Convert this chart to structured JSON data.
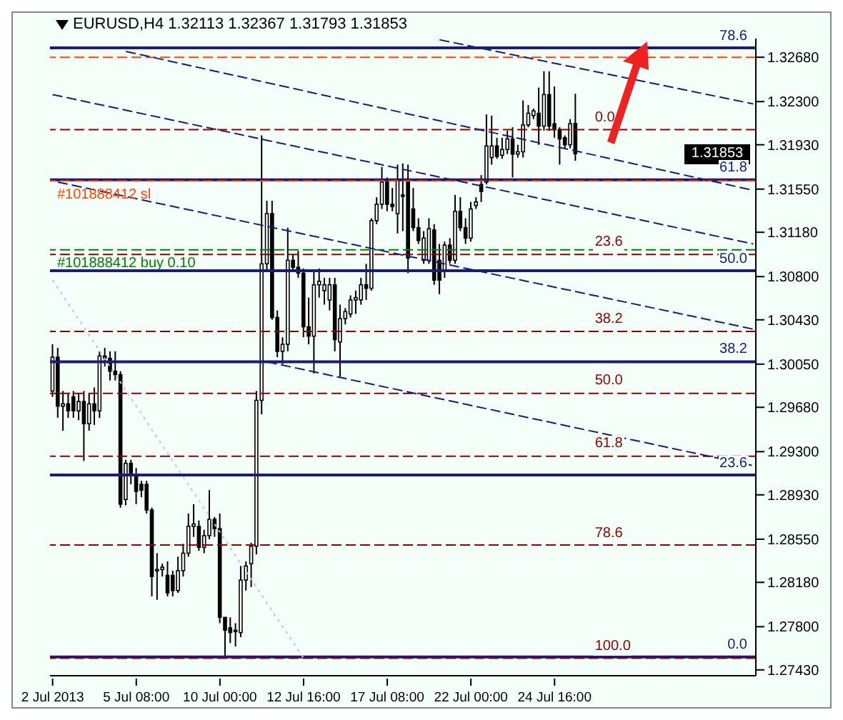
{
  "chart_data": {
    "type": "candlestick",
    "title": "EURUSD,H4 1.32113 1.32367 1.31793 1.31853",
    "color": "#000000",
    "categories": [
      "2 Jul 2013",
      null,
      null,
      null,
      null,
      null,
      null,
      null,
      null,
      null,
      null,
      null,
      null,
      null,
      null,
      null,
      "5 Jul 08:00",
      null,
      null,
      null,
      null,
      null,
      null,
      null,
      null,
      null,
      null,
      null,
      null,
      null,
      null,
      null,
      "10 Jul 00:00",
      null,
      null,
      null,
      null,
      null,
      null,
      null,
      null,
      null,
      null,
      null,
      null,
      null,
      null,
      null,
      "12 Jul 16:00",
      null,
      null,
      null,
      null,
      null,
      null,
      null,
      null,
      null,
      null,
      null,
      null,
      null,
      null,
      null,
      "17 Jul 08:00",
      null,
      null,
      null,
      null,
      null,
      null,
      null,
      null,
      null,
      null,
      null,
      null,
      null,
      null,
      null,
      "22 Jul 00:00",
      null,
      null,
      null,
      null,
      null,
      null,
      null,
      null,
      null,
      null,
      null,
      null,
      null,
      null,
      null,
      "24 Jul 16:00",
      null,
      null,
      null,
      null,
      null,
      null,
      null,
      null,
      null,
      null,
      null,
      null,
      null,
      null,
      null,
      null,
      null,
      null,
      null,
      null,
      null,
      null,
      null,
      null,
      null,
      null,
      null,
      null,
      null,
      null,
      null,
      null,
      null,
      null,
      null,
      null,
      null,
      null
    ],
    "ohlc": [
      [
        1.2982,
        1.3022,
        1.2977,
        1.3011
      ],
      [
        1.3011,
        1.3019,
        1.2959,
        1.2969
      ],
      [
        1.2969,
        1.2982,
        1.2948,
        1.2971
      ],
      [
        1.2971,
        1.298,
        1.2959,
        1.2965
      ],
      [
        1.2977,
        1.2982,
        1.2959,
        1.2965
      ],
      [
        1.2965,
        1.298,
        1.2957,
        1.2973
      ],
      [
        1.2973,
        1.2982,
        1.2922,
        1.2954
      ],
      [
        1.2954,
        1.298,
        1.2948,
        1.2971
      ],
      [
        1.2971,
        1.2985,
        1.2953,
        1.2965
      ],
      [
        1.2965,
        1.3016,
        1.2959,
        1.3012
      ],
      [
        1.3012,
        1.3019,
        1.3003,
        1.301
      ],
      [
        1.301,
        1.3016,
        1.2991,
        1.2999
      ],
      [
        1.2999,
        1.3016,
        1.2991,
        1.2996
      ],
      [
        1.2996,
        1.2999,
        1.2882,
        1.2885
      ],
      [
        1.2889,
        1.2923,
        1.2884,
        1.292
      ],
      [
        1.292,
        1.2923,
        1.2902,
        1.291
      ],
      [
        1.291,
        1.2916,
        1.2885,
        1.2896
      ],
      [
        1.2902,
        1.2905,
        1.2891,
        1.2897
      ],
      [
        1.2902,
        1.2905,
        1.2877,
        1.288
      ],
      [
        1.288,
        1.2882,
        1.2806,
        1.2823
      ],
      [
        1.2828,
        1.2843,
        1.2803,
        1.2829
      ],
      [
        1.2829,
        1.2834,
        1.2823,
        1.2831
      ],
      [
        1.2824,
        1.2836,
        1.2806,
        1.2809
      ],
      [
        1.2824,
        1.2828,
        1.2806,
        1.2811
      ],
      [
        1.2811,
        1.284,
        1.2809,
        1.2828
      ],
      [
        1.2828,
        1.2851,
        1.2823,
        1.2843
      ],
      [
        1.2843,
        1.2877,
        1.284,
        1.2866
      ],
      [
        1.2866,
        1.2885,
        1.2857,
        1.2868
      ],
      [
        1.2866,
        1.2871,
        1.2845,
        1.2848
      ],
      [
        1.2848,
        1.2863,
        1.2843,
        1.2858
      ],
      [
        1.2858,
        1.2897,
        1.2855,
        1.2872
      ],
      [
        1.2872,
        1.2874,
        1.2857,
        1.2864
      ],
      [
        1.2864,
        1.2877,
        1.2783,
        1.2788
      ],
      [
        1.2788,
        1.2788,
        1.2754,
        1.2777
      ],
      [
        1.2779,
        1.2788,
        1.2766,
        1.2775
      ],
      [
        1.2777,
        1.2783,
        1.2763,
        1.2776
      ],
      [
        1.2775,
        1.2832,
        1.2771,
        1.282
      ],
      [
        1.282,
        1.2836,
        1.2811,
        1.2832
      ],
      [
        1.2834,
        1.2852,
        1.2814,
        1.2849
      ],
      [
        1.2849,
        1.2982,
        1.2842,
        1.2974
      ],
      [
        1.2974,
        1.3201,
        1.2962,
        1.3091
      ],
      [
        1.3091,
        1.3145,
        1.3085,
        1.3134
      ],
      [
        1.3134,
        1.3145,
        1.3043,
        1.3045
      ],
      [
        1.3045,
        1.3051,
        1.3011,
        1.3016
      ],
      [
        1.3016,
        1.3028,
        1.3005,
        1.3022
      ],
      [
        1.3022,
        1.3122,
        1.3016,
        1.3094
      ],
      [
        1.3094,
        1.3099,
        1.3085,
        1.3088
      ],
      [
        1.3088,
        1.3102,
        1.3079,
        1.3083
      ],
      [
        1.3083,
        1.3087,
        1.3028,
        1.3037
      ],
      [
        1.3037,
        1.3062,
        1.3022,
        1.3029
      ],
      [
        1.3029,
        1.3085,
        1.2997,
        1.3073
      ],
      [
        1.3073,
        1.3087,
        1.3062,
        1.3076
      ],
      [
        1.3068,
        1.3079,
        1.3056,
        1.3073
      ],
      [
        1.306,
        1.3079,
        1.3051,
        1.3073
      ],
      [
        1.3073,
        1.3079,
        1.3016,
        1.3026
      ],
      [
        1.3024,
        1.3056,
        1.2994,
        1.3044
      ],
      [
        1.3044,
        1.3053,
        1.3039,
        1.305
      ],
      [
        1.3048,
        1.3064,
        1.3045,
        1.306
      ],
      [
        1.306,
        1.3068,
        1.3048,
        1.3062
      ],
      [
        1.306,
        1.3079,
        1.3056,
        1.3073
      ],
      [
        1.3073,
        1.3091,
        1.306,
        1.307
      ],
      [
        1.307,
        1.313,
        1.3068,
        1.3128
      ],
      [
        1.3128,
        1.3148,
        1.3125,
        1.3142
      ],
      [
        1.3142,
        1.3174,
        1.3138,
        1.3161
      ],
      [
        1.3161,
        1.3165,
        1.3136,
        1.3142
      ],
      [
        1.3142,
        1.3156,
        1.3136,
        1.314
      ],
      [
        1.3134,
        1.3176,
        1.3117,
        1.3162
      ],
      [
        1.315,
        1.3177,
        1.3119,
        1.3149
      ],
      [
        1.3161,
        1.3176,
        1.3083,
        1.3096
      ],
      [
        1.3138,
        1.3156,
        1.3119,
        1.3122
      ],
      [
        1.3122,
        1.313,
        1.3108,
        1.3111
      ],
      [
        1.3094,
        1.3119,
        1.3091,
        1.3113
      ],
      [
        1.3094,
        1.313,
        1.3091,
        1.3121
      ],
      [
        1.312,
        1.3125,
        1.3073,
        1.3077
      ],
      [
        1.3094,
        1.3108,
        1.3065,
        1.3077
      ],
      [
        1.3085,
        1.311,
        1.3079,
        1.3107
      ],
      [
        1.3107,
        1.3113,
        1.3091,
        1.3094
      ],
      [
        1.3094,
        1.315,
        1.3091,
        1.3136
      ],
      [
        1.3136,
        1.3148,
        1.3119,
        1.3122
      ],
      [
        1.3122,
        1.313,
        1.3108,
        1.3113
      ],
      [
        1.3113,
        1.3144,
        1.311,
        1.3138
      ],
      [
        1.3141,
        1.3148,
        1.3138,
        1.3144
      ],
      [
        1.3159,
        1.3167,
        1.3144,
        1.3153
      ],
      [
        1.3161,
        1.3219,
        1.3159,
        1.3192
      ],
      [
        1.3182,
        1.3218,
        1.3176,
        1.3192
      ],
      [
        1.3192,
        1.3199,
        1.3181,
        1.3183
      ],
      [
        1.3184,
        1.3199,
        1.3181,
        1.3189
      ],
      [
        1.3189,
        1.3205,
        1.3185,
        1.3198
      ],
      [
        1.3198,
        1.3208,
        1.3165,
        1.3185
      ],
      [
        1.3185,
        1.3193,
        1.3182,
        1.3187
      ],
      [
        1.3187,
        1.3231,
        1.3182,
        1.321
      ],
      [
        1.321,
        1.3227,
        1.3208,
        1.322
      ],
      [
        1.3218,
        1.3224,
        1.3215,
        1.3222
      ],
      [
        1.322,
        1.3242,
        1.3193,
        1.3209
      ],
      [
        1.3209,
        1.3256,
        1.3205,
        1.3236
      ],
      [
        1.3236,
        1.3256,
        1.3205,
        1.3209
      ],
      [
        1.3211,
        1.3243,
        1.3199,
        1.3206
      ],
      [
        1.3206,
        1.3208,
        1.3176,
        1.3198
      ],
      [
        1.3199,
        1.3201,
        1.319,
        1.3193
      ],
      [
        1.3193,
        1.3215,
        1.319,
        1.3211
      ],
      [
        1.32113,
        1.32367,
        1.31793,
        1.31853
      ],
      null,
      null,
      null,
      null,
      null,
      null,
      null,
      null,
      null,
      null,
      null,
      null,
      null,
      null,
      null,
      null,
      null,
      null,
      null,
      null,
      null,
      null,
      null,
      null,
      null,
      null,
      null,
      null,
      null,
      null,
      null,
      null,
      null,
      null
    ],
    "series": [
      {
        "type": "line",
        "color": "#1b1b7a",
        "line_style": "dashed",
        "values": [
          1.3236,
          null,
          null,
          null,
          null,
          null,
          null,
          null,
          null,
          null,
          null,
          null,
          null,
          null,
          null,
          null,
          null,
          null,
          null,
          null,
          null,
          null,
          null,
          null,
          null,
          null,
          null,
          null,
          null,
          null,
          null,
          null,
          null,
          null,
          null,
          null,
          null,
          null,
          null,
          null,
          null,
          null,
          null,
          null,
          null,
          null,
          null,
          null,
          null,
          null,
          null,
          null,
          null,
          null,
          null,
          null,
          null,
          null,
          null,
          null,
          null,
          null,
          null,
          null,
          null,
          null,
          null,
          null,
          null,
          null,
          null,
          null,
          null,
          null,
          null,
          null,
          null,
          null,
          null,
          null,
          null,
          null,
          null,
          null,
          null,
          null,
          null,
          null,
          null,
          null,
          null,
          null,
          null,
          null,
          null,
          null,
          null,
          null,
          null,
          null,
          null,
          null,
          null,
          null,
          null,
          null,
          null,
          null,
          null,
          null,
          null,
          null,
          null,
          null,
          null,
          null,
          null,
          null,
          null,
          null,
          null,
          null,
          null,
          null,
          null,
          null,
          null,
          null,
          null,
          null,
          null,
          null,
          null,
          null,
          1.3108
        ]
      },
      {
        "type": "line",
        "color": "#1b1b7a",
        "line_style": "dashed",
        "values": [
          null,
          1.3161,
          null,
          null,
          null,
          null,
          null,
          null,
          null,
          null,
          null,
          null,
          null,
          null,
          null,
          null,
          null,
          null,
          null,
          null,
          null,
          null,
          null,
          null,
          null,
          null,
          null,
          null,
          null,
          null,
          null,
          null,
          null,
          null,
          null,
          null,
          null,
          null,
          null,
          null,
          null,
          null,
          null,
          null,
          null,
          null,
          null,
          null,
          null,
          null,
          null,
          null,
          null,
          null,
          null,
          null,
          null,
          null,
          null,
          null,
          null,
          null,
          null,
          null,
          null,
          null,
          null,
          null,
          null,
          null,
          null,
          null,
          null,
          null,
          null,
          null,
          null,
          null,
          null,
          null,
          null,
          null,
          null,
          null,
          null,
          null,
          null,
          null,
          null,
          null,
          null,
          null,
          null,
          null,
          null,
          null,
          null,
          null,
          null,
          null,
          null,
          null,
          null,
          null,
          null,
          null,
          null,
          null,
          null,
          null,
          null,
          null,
          null,
          null,
          null,
          null,
          null,
          null,
          null,
          null,
          null,
          null,
          null,
          null,
          null,
          null,
          null,
          null,
          null,
          null,
          null,
          null,
          null,
          null,
          1.3035
        ]
      },
      {
        "type": "line",
        "color": "#1b1b7a",
        "line_style": "dashed",
        "values": [
          null,
          null,
          null,
          null,
          null,
          null,
          null,
          null,
          null,
          null,
          null,
          null,
          null,
          null,
          1.3273,
          null,
          null,
          null,
          null,
          null,
          null,
          null,
          null,
          null,
          null,
          null,
          null,
          null,
          null,
          null,
          null,
          null,
          null,
          null,
          null,
          null,
          null,
          null,
          null,
          null,
          null,
          null,
          null,
          null,
          null,
          null,
          null,
          null,
          null,
          null,
          null,
          null,
          null,
          null,
          null,
          null,
          null,
          null,
          null,
          null,
          null,
          null,
          null,
          null,
          null,
          null,
          null,
          null,
          null,
          null,
          null,
          null,
          null,
          null,
          null,
          null,
          null,
          null,
          null,
          null,
          null,
          null,
          null,
          null,
          null,
          null,
          null,
          null,
          null,
          null,
          null,
          null,
          null,
          null,
          null,
          null,
          null,
          null,
          null,
          null,
          null,
          null,
          null,
          null,
          null,
          null,
          null,
          null,
          null,
          null,
          null,
          null,
          null,
          null,
          null,
          null,
          null,
          null,
          null,
          null,
          null,
          null,
          null,
          null,
          null,
          null,
          null,
          null,
          null,
          null,
          null,
          null,
          null,
          null,
          1.3154
        ]
      },
      {
        "type": "line",
        "color": "#1b1b7a",
        "line_style": "dashed",
        "values": [
          null,
          null,
          null,
          null,
          null,
          null,
          null,
          null,
          null,
          null,
          null,
          null,
          null,
          null,
          null,
          null,
          null,
          null,
          null,
          null,
          null,
          null,
          null,
          null,
          null,
          null,
          null,
          null,
          null,
          null,
          null,
          null,
          null,
          null,
          null,
          null,
          null,
          null,
          null,
          null,
          null,
          1.3007,
          null,
          null,
          null,
          null,
          null,
          null,
          null,
          null,
          null,
          null,
          null,
          null,
          null,
          null,
          null,
          null,
          null,
          null,
          null,
          null,
          null,
          null,
          null,
          null,
          null,
          null,
          null,
          null,
          null,
          null,
          null,
          null,
          null,
          null,
          null,
          null,
          null,
          null,
          null,
          null,
          null,
          null,
          null,
          null,
          null,
          null,
          null,
          null,
          null,
          null,
          null,
          null,
          null,
          null,
          null,
          null,
          null,
          null,
          null,
          null,
          null,
          null,
          null,
          null,
          null,
          null,
          null,
          null,
          null,
          null,
          null,
          null,
          null,
          null,
          null,
          null,
          null,
          null,
          null,
          null,
          null,
          null,
          null,
          null,
          null,
          null,
          null,
          null,
          null,
          null,
          null,
          null,
          1.2918
        ]
      },
      {
        "type": "line",
        "color": "#1b1b7a",
        "line_style": "dashed",
        "values": [
          null,
          null,
          null,
          null,
          null,
          null,
          null,
          null,
          null,
          null,
          null,
          null,
          null,
          null,
          null,
          null,
          null,
          null,
          null,
          null,
          null,
          null,
          null,
          null,
          null,
          null,
          null,
          null,
          null,
          null,
          null,
          null,
          null,
          null,
          null,
          null,
          null,
          null,
          null,
          null,
          null,
          null,
          null,
          null,
          null,
          null,
          null,
          null,
          null,
          null,
          null,
          null,
          null,
          null,
          null,
          null,
          null,
          null,
          null,
          null,
          null,
          null,
          null,
          null,
          null,
          null,
          null,
          null,
          null,
          null,
          null,
          null,
          null,
          null,
          1.3283,
          null,
          null,
          null,
          null,
          null,
          null,
          null,
          null,
          null,
          null,
          null,
          null,
          null,
          null,
          null,
          null,
          null,
          null,
          null,
          null,
          null,
          null,
          null,
          null,
          null,
          null,
          null,
          null,
          null,
          null,
          null,
          null,
          null,
          null,
          null,
          null,
          null,
          null,
          null,
          null,
          null,
          null,
          null,
          null,
          null,
          null,
          null,
          null,
          null,
          null,
          null,
          null,
          null,
          null,
          null,
          null,
          null,
          null,
          null,
          1.3228
        ]
      },
      {
        "type": "line",
        "color": "#b4c8f0",
        "line_style": "dotted",
        "values": [
          1.3077,
          null,
          null,
          null,
          null,
          null,
          null,
          null,
          null,
          null,
          null,
          null,
          null,
          null,
          null,
          null,
          null,
          null,
          null,
          null,
          null,
          null,
          null,
          null,
          null,
          null,
          null,
          null,
          null,
          null,
          null,
          null,
          null,
          null,
          null,
          null,
          null,
          null,
          null,
          null,
          null,
          null,
          null,
          null,
          null,
          null,
          null,
          null,
          1.2753,
          null,
          null,
          null,
          null,
          null,
          null,
          null,
          null,
          null,
          null,
          null,
          null,
          null,
          null,
          null,
          null,
          null,
          null,
          null,
          null,
          null,
          null,
          null,
          null,
          null,
          null,
          null,
          null,
          null,
          null,
          null,
          null,
          null,
          null,
          null,
          null,
          null,
          null,
          null,
          null,
          null,
          null,
          null,
          null,
          null,
          null,
          null,
          null,
          null,
          null,
          null,
          null,
          null,
          null,
          null,
          null,
          null,
          null,
          null,
          null,
          null,
          null,
          null,
          null,
          null,
          null,
          null,
          null,
          null,
          null,
          null,
          null,
          null,
          null,
          null,
          null,
          null,
          null,
          null,
          null,
          null,
          null,
          null,
          null,
          null,
          null
        ]
      }
    ],
    "ylim": [
      1.2738,
      1.3284
    ],
    "yticks": [
      {
        "value": 1.2743,
        "label": "1.27430"
      },
      {
        "value": 1.278,
        "label": "1.27800"
      },
      {
        "value": 1.2818,
        "label": "1.28180"
      },
      {
        "value": 1.2855,
        "label": "1.28550"
      },
      {
        "value": 1.2893,
        "label": "1.28930"
      },
      {
        "value": 1.293,
        "label": "1.29300"
      },
      {
        "value": 1.2968,
        "label": "1.29680"
      },
      {
        "value": 1.3005,
        "label": "1.30050"
      },
      {
        "value": 1.3043,
        "label": "1.30430"
      },
      {
        "value": 1.308,
        "label": "1.30800"
      },
      {
        "value": 1.3118,
        "label": "1.31180"
      },
      {
        "value": 1.3155,
        "label": "1.31550"
      },
      {
        "value": 1.3193,
        "label": "1.31930"
      },
      {
        "value": 1.323,
        "label": "1.32300"
      },
      {
        "value": 1.3268,
        "label": "1.32680"
      }
    ],
    "ref_lines": [
      {
        "axis": "y",
        "value": 1.3276,
        "color": "#1b1b7a",
        "line_style": "solid"
      },
      {
        "axis": "y",
        "value": 1.3163,
        "color": "#1b1b7a",
        "line_style": "solid"
      },
      {
        "axis": "y",
        "value": 1.3085,
        "color": "#1b1b7a",
        "line_style": "solid"
      },
      {
        "axis": "y",
        "value": 1.3007,
        "color": "#1b1b7a",
        "line_style": "solid"
      },
      {
        "axis": "y",
        "value": 1.291,
        "color": "#1b1b7a",
        "line_style": "solid"
      },
      {
        "axis": "y",
        "value": 1.2754,
        "color": "#1b1b7a",
        "line_style": "solid"
      },
      {
        "axis": "y",
        "value": 1.3268,
        "color": "#ff4500",
        "line_style": "dashed"
      },
      {
        "axis": "y",
        "value": 1.3162,
        "label": "#101888412 sl",
        "color": "#ff4500",
        "line_style": "dashed"
      },
      {
        "axis": "y",
        "value": 1.3103,
        "label": "#101888412 buy 0.10",
        "color": "#008000",
        "line_style": "dashed"
      },
      {
        "axis": "y",
        "value": 1.3206,
        "color": "#8b0000",
        "line_style": "dashed"
      },
      {
        "axis": "y",
        "value": 1.3099,
        "color": "#8b0000",
        "line_style": "dashed"
      },
      {
        "axis": "y",
        "value": 1.3033,
        "color": "#8b0000",
        "line_style": "dashed"
      },
      {
        "axis": "y",
        "value": 1.298,
        "color": "#8b0000",
        "line_style": "dashed"
      },
      {
        "axis": "y",
        "value": 1.2926,
        "color": "#8b0000",
        "line_style": "dashed"
      },
      {
        "axis": "y",
        "value": 1.285,
        "color": "#8b0000",
        "line_style": "dashed"
      },
      {
        "axis": "y",
        "value": 1.2753,
        "color": "#8b0000",
        "line_style": "dashed"
      }
    ],
    "annotations": [
      "1.31853",
      {
        "text": "78.6",
        "y": 1.3276
      },
      {
        "text": "61.8",
        "y": 1.3163
      },
      {
        "text": "50.0",
        "y": 1.3085
      },
      {
        "text": "38.2",
        "y": 1.3007
      },
      {
        "text": "23.6",
        "y": 1.291
      },
      {
        "text": "0.0",
        "y": 1.2754
      },
      {
        "text": "0.0",
        "y": 1.3206
      },
      {
        "text": "23.6",
        "y": 1.3099
      },
      {
        "text": "38.2",
        "y": 1.3033
      },
      {
        "text": "50.0",
        "y": 1.298
      },
      {
        "text": "61.8",
        "y": 1.2926
      },
      {
        "text": "78.6",
        "y": 1.285
      },
      {
        "text": "100.0",
        "y": 1.2753
      }
    ]
  }
}
